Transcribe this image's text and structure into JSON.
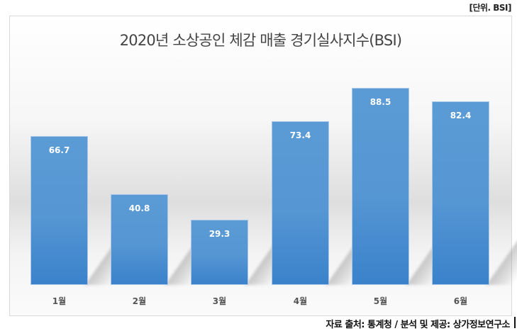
{
  "unit_label": "[단위. BSI]",
  "title": "2020년 소상공인 체감 매출 경기실사지수(BSI)",
  "source": "자료 출처: 통계청 / 분석 및 제공: 상가정보연구소",
  "colors": {
    "bar": "#5b9bd5",
    "bar_bottom": "#3a82cb",
    "label": "#ffffff"
  },
  "bars": [
    {
      "category": "1월",
      "value": "66.7"
    },
    {
      "category": "2월",
      "value": "40.8"
    },
    {
      "category": "3월",
      "value": "29.3"
    },
    {
      "category": "4월",
      "value": "73.4"
    },
    {
      "category": "5월",
      "value": "88.5"
    },
    {
      "category": "6월",
      "value": "82.4"
    }
  ],
  "chart_data": {
    "type": "bar",
    "title": "2020년 소상공인 체감 매출 경기실사지수(BSI)",
    "categories": [
      "1월",
      "2월",
      "3월",
      "4월",
      "5월",
      "6월"
    ],
    "values": [
      66.7,
      40.8,
      29.3,
      73.4,
      88.5,
      82.4
    ],
    "xlabel": "",
    "ylabel": "",
    "unit": "BSI",
    "ylim": [
      0,
      100
    ],
    "grid": false,
    "legend": null,
    "data_labels": true,
    "source": "자료 출처: 통계청 / 분석 및 제공: 상가정보연구소"
  }
}
